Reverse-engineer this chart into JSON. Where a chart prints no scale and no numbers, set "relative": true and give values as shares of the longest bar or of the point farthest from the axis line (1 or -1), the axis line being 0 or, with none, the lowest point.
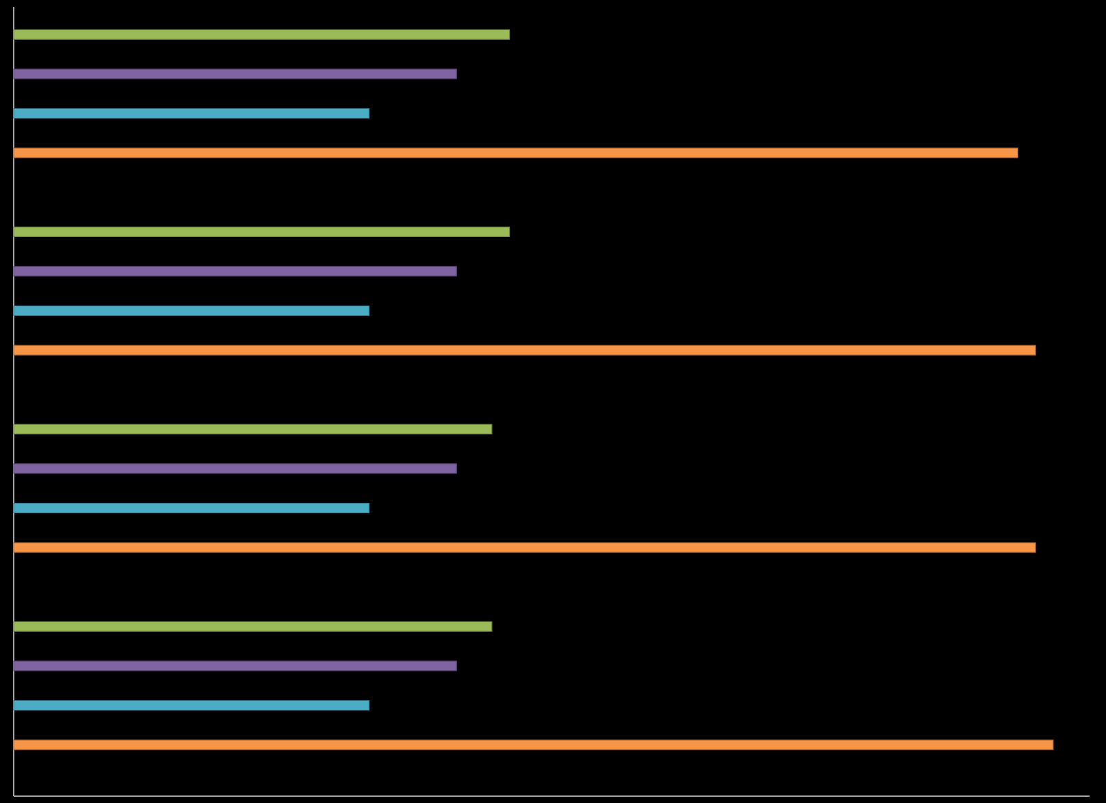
{
  "chart_data": {
    "type": "bar",
    "orientation": "horizontal",
    "relative": true,
    "categories": [
      null,
      null,
      null,
      null
    ],
    "series": [
      {
        "color": "#9bbb59",
        "values": [
          0.477,
          0.477,
          0.46,
          0.46
        ]
      },
      {
        "color": "#8064a2",
        "values": [
          0.426,
          0.426,
          0.426,
          0.426
        ]
      },
      {
        "color": "#4bacc6",
        "values": [
          0.342,
          0.342,
          0.342,
          0.342
        ]
      },
      {
        "color": "#f79646",
        "values": [
          0.966,
          0.983,
          0.983,
          1
        ]
      }
    ]
  }
}
